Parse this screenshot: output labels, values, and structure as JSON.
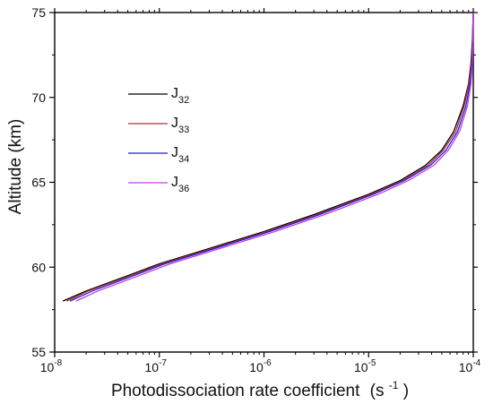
{
  "chart_data": {
    "type": "line",
    "xlabel": "Photodissociation rate coefficient",
    "xlabel_unit": "(s",
    "xlabel_unit_exp": "-1",
    "xlabel_unit_close": ")",
    "ylabel": "Altitude (km)",
    "xscale": "log",
    "xlim": [
      1e-08,
      0.0001
    ],
    "ylim": [
      55,
      75
    ],
    "x_ticks": [
      {
        "base": "10",
        "exp": "-8",
        "value": 1e-08
      },
      {
        "base": "10",
        "exp": "-7",
        "value": 1e-07
      },
      {
        "base": "10",
        "exp": "-6",
        "value": 1e-06
      },
      {
        "base": "10",
        "exp": "-5",
        "value": 1e-05
      },
      {
        "base": "10",
        "exp": "-4",
        "value": 0.0001
      }
    ],
    "y_ticks": [
      "55",
      "60",
      "65",
      "70",
      "75"
    ],
    "grid": false,
    "legend_position": "upper-left",
    "series": [
      {
        "name_main": "J",
        "name_sub": "32",
        "color": "#000000",
        "x": [
          1.2e-08,
          2e-08,
          5e-08,
          1e-07,
          3e-07,
          1e-06,
          3e-06,
          1e-05,
          2e-05,
          3.5e-05,
          5e-05,
          6.5e-05,
          8e-05,
          9e-05,
          9.5e-05,
          9.8e-05,
          0.0001
        ],
        "y": [
          58.0,
          58.6,
          59.5,
          60.2,
          61.1,
          62.1,
          63.1,
          64.3,
          65.1,
          66.0,
          66.9,
          68.0,
          69.5,
          70.8,
          72.0,
          73.4,
          75.0
        ]
      },
      {
        "name_main": "J",
        "name_sub": "33",
        "color": "#b03030",
        "x": [
          1.3e-08,
          2.1e-08,
          5.3e-08,
          1.06e-07,
          3.2e-07,
          1.06e-06,
          3.2e-06,
          1.06e-05,
          2.1e-05,
          3.7e-05,
          5.2e-05,
          6.8e-05,
          8.2e-05,
          9.1e-05,
          9.6e-05,
          9.85e-05,
          0.0001
        ],
        "y": [
          58.0,
          58.6,
          59.5,
          60.2,
          61.1,
          62.1,
          63.1,
          64.3,
          65.1,
          66.0,
          66.9,
          68.0,
          69.5,
          70.8,
          72.0,
          73.4,
          75.0
        ]
      },
      {
        "name_main": "J",
        "name_sub": "34",
        "color": "#2020dd",
        "x": [
          1.4e-08,
          2.3e-08,
          5.7e-08,
          1.13e-07,
          3.4e-07,
          1.13e-06,
          3.4e-06,
          1.12e-05,
          2.2e-05,
          3.9e-05,
          5.5e-05,
          7.1e-05,
          8.5e-05,
          9.3e-05,
          9.7e-05,
          9.9e-05,
          0.0001
        ],
        "y": [
          58.0,
          58.6,
          59.5,
          60.2,
          61.1,
          62.1,
          63.1,
          64.3,
          65.1,
          66.0,
          66.9,
          68.0,
          69.5,
          70.8,
          72.0,
          73.4,
          75.0
        ]
      },
      {
        "name_main": "J",
        "name_sub": "36",
        "color": "#c040e0",
        "x": [
          1.6e-08,
          2.6e-08,
          6.4e-08,
          1.27e-07,
          3.8e-07,
          1.27e-06,
          3.8e-06,
          1.24e-05,
          2.4e-05,
          4.2e-05,
          5.8e-05,
          7.4e-05,
          8.8e-05,
          9.5e-05,
          9.8e-05,
          9.95e-05,
          0.0001
        ],
        "y": [
          58.0,
          58.6,
          59.5,
          60.2,
          61.1,
          62.1,
          63.1,
          64.3,
          65.1,
          66.0,
          66.9,
          68.0,
          69.5,
          70.8,
          72.0,
          73.4,
          75.0
        ]
      }
    ]
  }
}
